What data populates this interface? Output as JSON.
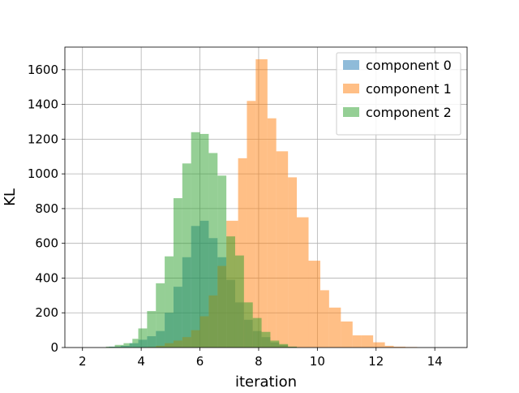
{
  "chart_data": {
    "type": "histogram",
    "title": "",
    "xlabel": "iteration",
    "ylabel": "KL",
    "xlim": [
      1.4,
      15.1
    ],
    "ylim": [
      0,
      1730
    ],
    "xticks": [
      2,
      4,
      6,
      8,
      10,
      12,
      14
    ],
    "yticks": [
      0,
      200,
      400,
      600,
      800,
      1000,
      1200,
      1400,
      1600
    ],
    "grid": true,
    "legend_position": "top-right",
    "bar_opacity": 0.5,
    "series": [
      {
        "name": "component 0",
        "color": "#1f77b4",
        "bins": [
          [
            2.9,
            3.3,
            5
          ],
          [
            3.3,
            3.6,
            10
          ],
          [
            3.6,
            3.9,
            25
          ],
          [
            3.9,
            4.2,
            45
          ],
          [
            4.2,
            4.5,
            65
          ],
          [
            4.5,
            4.8,
            95
          ],
          [
            4.8,
            5.1,
            200
          ],
          [
            5.1,
            5.4,
            350
          ],
          [
            5.4,
            5.7,
            520
          ],
          [
            5.7,
            6.0,
            700
          ],
          [
            6.0,
            6.3,
            730
          ],
          [
            6.3,
            6.6,
            630
          ],
          [
            6.6,
            6.9,
            520
          ],
          [
            6.9,
            7.2,
            390
          ],
          [
            7.2,
            7.5,
            260
          ],
          [
            7.5,
            7.8,
            160
          ],
          [
            7.8,
            8.1,
            95
          ],
          [
            8.1,
            8.4,
            60
          ],
          [
            8.4,
            8.7,
            30
          ],
          [
            8.7,
            9.0,
            15
          ],
          [
            9.0,
            9.3,
            5
          ]
        ]
      },
      {
        "name": "component 1",
        "color": "#ff7f0e",
        "bins": [
          [
            4.2,
            4.5,
            3
          ],
          [
            4.5,
            4.8,
            10
          ],
          [
            4.8,
            5.1,
            25
          ],
          [
            5.1,
            5.4,
            40
          ],
          [
            5.4,
            5.7,
            60
          ],
          [
            5.7,
            6.0,
            100
          ],
          [
            6.0,
            6.3,
            180
          ],
          [
            6.3,
            6.6,
            300
          ],
          [
            6.6,
            6.9,
            470
          ],
          [
            6.9,
            7.3,
            730
          ],
          [
            7.3,
            7.6,
            1090
          ],
          [
            7.6,
            7.9,
            1420
          ],
          [
            7.9,
            8.3,
            1660
          ],
          [
            8.3,
            8.6,
            1320
          ],
          [
            8.6,
            9.0,
            1130
          ],
          [
            9.0,
            9.3,
            980
          ],
          [
            9.3,
            9.7,
            750
          ],
          [
            9.7,
            10.1,
            500
          ],
          [
            10.1,
            10.4,
            330
          ],
          [
            10.4,
            10.8,
            230
          ],
          [
            10.8,
            11.2,
            150
          ],
          [
            11.2,
            11.5,
            70
          ],
          [
            11.5,
            11.9,
            70
          ],
          [
            11.9,
            12.3,
            30
          ],
          [
            12.3,
            12.6,
            10
          ],
          [
            12.6,
            13.0,
            5
          ],
          [
            13.0,
            13.4,
            3
          ]
        ]
      },
      {
        "name": "component 2",
        "color": "#2ca02c",
        "bins": [
          [
            2.8,
            3.1,
            5
          ],
          [
            3.1,
            3.4,
            15
          ],
          [
            3.4,
            3.7,
            25
          ],
          [
            3.7,
            3.9,
            50
          ],
          [
            3.9,
            4.2,
            110
          ],
          [
            4.2,
            4.5,
            210
          ],
          [
            4.5,
            4.8,
            370
          ],
          [
            4.8,
            5.1,
            525
          ],
          [
            5.1,
            5.4,
            860
          ],
          [
            5.4,
            5.7,
            1060
          ],
          [
            5.7,
            6.0,
            1240
          ],
          [
            6.0,
            6.3,
            1230
          ],
          [
            6.3,
            6.6,
            1120
          ],
          [
            6.6,
            6.9,
            990
          ],
          [
            6.9,
            7.2,
            640
          ],
          [
            7.2,
            7.5,
            530
          ],
          [
            7.5,
            7.8,
            260
          ],
          [
            7.8,
            8.1,
            170
          ],
          [
            8.1,
            8.4,
            90
          ],
          [
            8.4,
            8.7,
            40
          ],
          [
            8.7,
            9.0,
            20
          ],
          [
            9.0,
            9.3,
            5
          ]
        ]
      }
    ]
  }
}
